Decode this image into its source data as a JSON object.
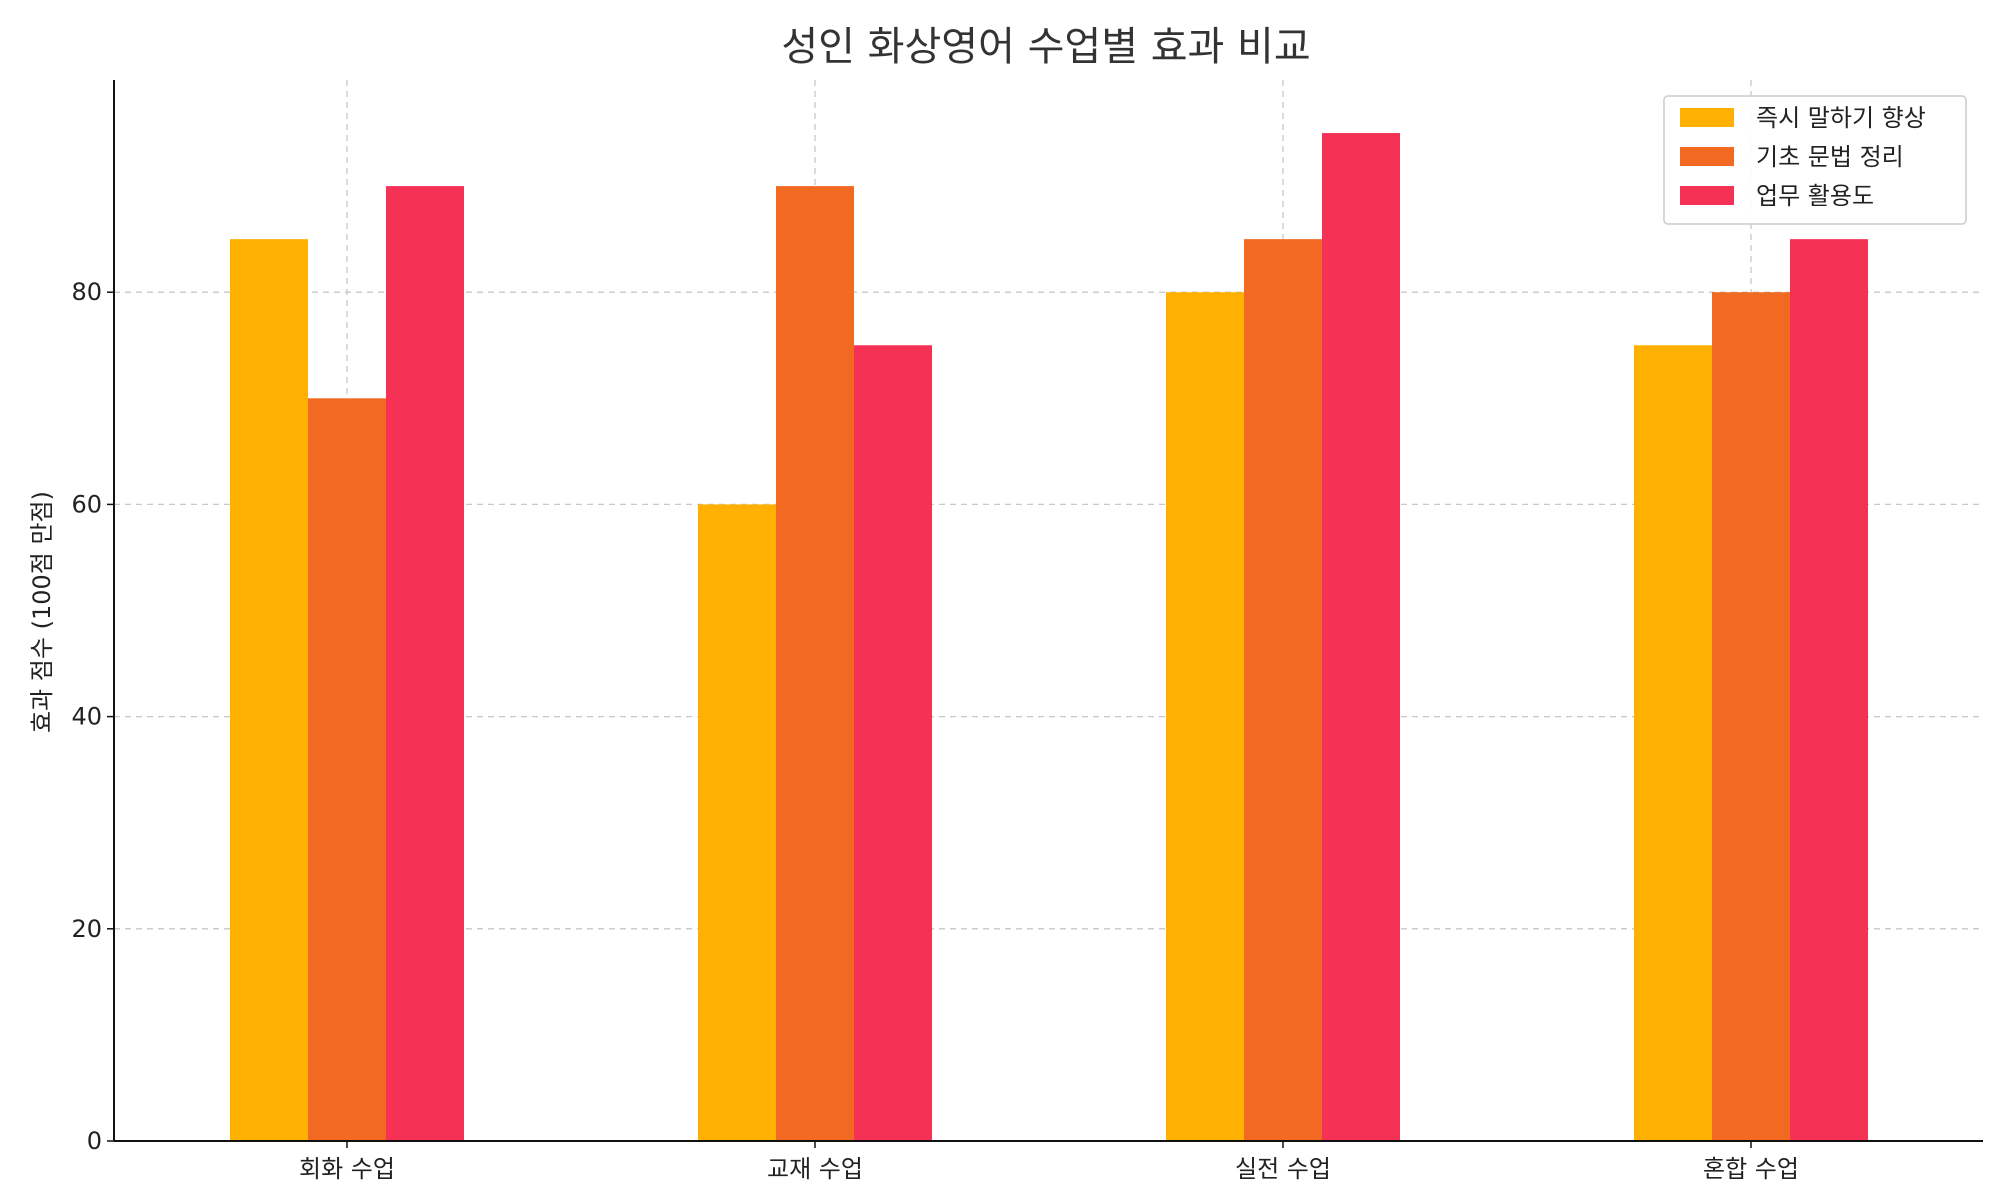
{
  "chart_data": {
    "type": "bar",
    "title": "성인 화상영어 수업별 효과 비교",
    "xlabel": "",
    "ylabel": "효과 점수 (100점 만점)",
    "categories": [
      "회화 수업",
      "교재 수업",
      "실전 수업",
      "혼합 수업"
    ],
    "series": [
      {
        "name": "즉시 말하기 향상",
        "color": "#FFB000",
        "values": [
          85,
          60,
          80,
          75
        ]
      },
      {
        "name": "기초 문법 정리",
        "color": "#F26A21",
        "values": [
          70,
          90,
          85,
          80
        ]
      },
      {
        "name": "업무 활용도",
        "color": "#F53255",
        "values": [
          90,
          75,
          95,
          85
        ]
      }
    ],
    "ylim": [
      0,
      100
    ],
    "yticks": [
      0,
      20,
      40,
      60,
      80
    ],
    "grid": true,
    "legend_position": "top-right"
  }
}
